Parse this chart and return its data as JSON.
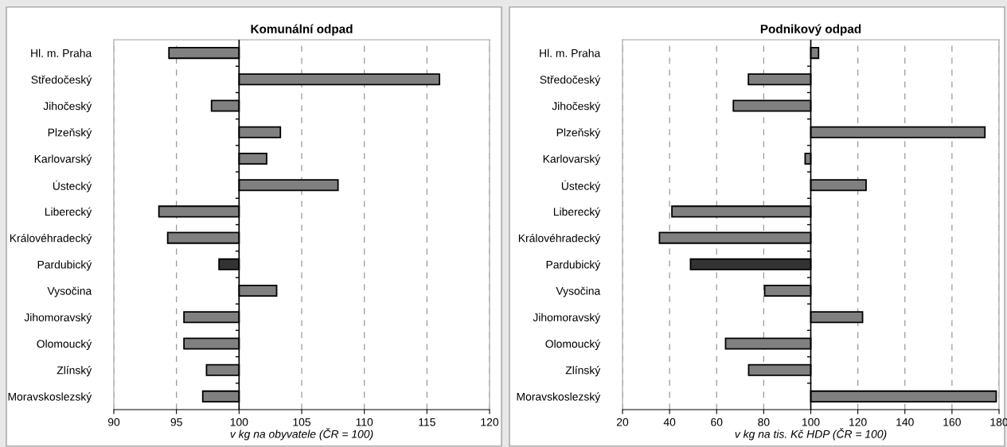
{
  "chart_data": [
    {
      "type": "bar",
      "orientation": "horizontal",
      "title": "Komunální odpad",
      "xlabel": "v kg na obyvatele (ČR = 100)",
      "categories": [
        "Hl. m. Praha",
        "Středočeský",
        "Jihočeský",
        "Plzeňský",
        "Karlovarský",
        "Ústecký",
        "Liberecký",
        "Královéhradecký",
        "Pardubický",
        "Vysočina",
        "Jihomoravský",
        "Olomoucký",
        "Zlínský",
        "Moravskoslezský"
      ],
      "base": [
        100,
        100,
        100,
        100,
        100,
        100,
        100,
        100,
        100,
        100,
        100,
        100,
        100,
        100
      ],
      "values": [
        -5.6,
        16.0,
        -2.2,
        3.3,
        2.2,
        7.9,
        -6.4,
        -5.7,
        -1.6,
        3.0,
        -4.4,
        -4.4,
        -2.6,
        -2.9
      ],
      "colors": [
        "#808080",
        "#808080",
        "#808080",
        "#808080",
        "#808080",
        "#808080",
        "#808080",
        "#808080",
        "#333333",
        "#808080",
        "#808080",
        "#808080",
        "#808080",
        "#808080"
      ],
      "xlim": [
        90,
        120
      ],
      "xticks": [
        90,
        95,
        100,
        105,
        110,
        115,
        120
      ],
      "grid": "x",
      "line_style": "dashed",
      "ref_lines": [
        {
          "axis": "x",
          "value": 100,
          "color": "#000000",
          "line_style": "solid"
        }
      ]
    },
    {
      "type": "bar",
      "orientation": "horizontal",
      "title": "Podnikový odpad",
      "xlabel": "v kg na tis. Kč HDP (ČR = 100)",
      "categories": [
        "Hl. m. Praha",
        "Středočeský",
        "Jihočeský",
        "Plzeňský",
        "Karlovarský",
        "Ústecký",
        "Liberecký",
        "Královéhradecký",
        "Pardubický",
        "Vysočina",
        "Jihomoravský",
        "Olomoucký",
        "Zlínský",
        "Moravskoslezský"
      ],
      "base": [
        100,
        100,
        100,
        100,
        100,
        100,
        100,
        100,
        100,
        100,
        100,
        100,
        100,
        100
      ],
      "values": [
        3.3,
        -26.5,
        -32.9,
        74.0,
        -2.4,
        23.5,
        -59.0,
        -64.3,
        -51.1,
        -19.6,
        22.0,
        -36.2,
        -26.4,
        78.8
      ],
      "colors": [
        "#808080",
        "#808080",
        "#808080",
        "#808080",
        "#808080",
        "#808080",
        "#808080",
        "#808080",
        "#333333",
        "#808080",
        "#808080",
        "#808080",
        "#808080",
        "#808080"
      ],
      "xlim": [
        20,
        180
      ],
      "xticks": [
        20,
        40,
        60,
        80,
        100,
        120,
        140,
        160,
        180
      ],
      "grid": "x",
      "line_style": "dashed",
      "ref_lines": [
        {
          "axis": "x",
          "value": 100,
          "color": "#000000",
          "line_style": "solid"
        }
      ]
    }
  ]
}
